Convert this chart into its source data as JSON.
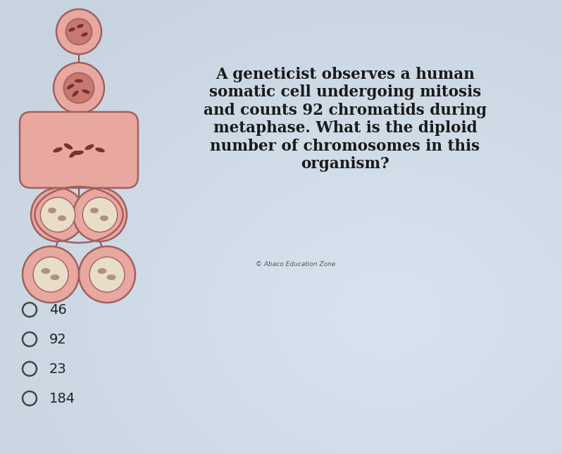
{
  "bg_color": "#c0cdd8",
  "question_text": "A geneticist observes a human\nsomatic cell undergoing mitosis\nand counts 92 chromatids during\nmetaphase. What is the diploid\nnumber of chromosomes in this\norganism?",
  "copyright_text": "© Abaco Education Zone",
  "choices": [
    "46",
    "92",
    "23",
    "184"
  ],
  "question_fontsize": 15.5,
  "choice_fontsize": 14,
  "copyright_fontsize": 6.5,
  "cell_outer_color": "#e8a8a0",
  "cell_inner_color": "#c87870",
  "cell_edge_color": "#a06060",
  "line_color": "#8b5050",
  "connector_color": "#7a4444"
}
